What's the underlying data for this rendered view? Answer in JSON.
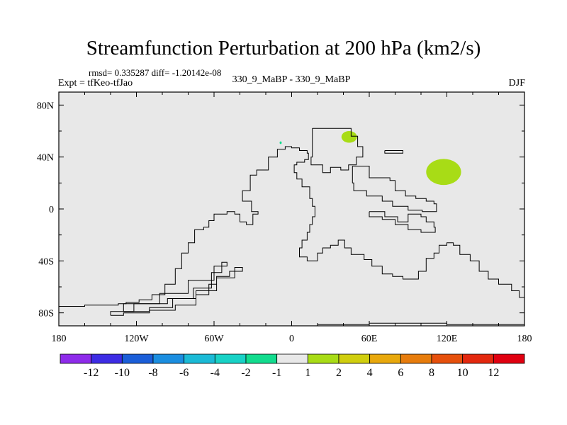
{
  "chart_data": {
    "type": "heatmap",
    "title": "Streamfunction Perturbation at 200 hPa (km2/s)",
    "stats_line": "rmsd= 0.335287 diff= -1.20142e-08",
    "left_label": "Expt = tfKeo-tfJao",
    "center_label": "330_9_MaBP - 330_9_MaBP",
    "right_label": "DJF",
    "xlim": [
      -180,
      180
    ],
    "ylim": [
      -90,
      90
    ],
    "x_ticks": [
      {
        "value": -180,
        "label": "180"
      },
      {
        "value": -120,
        "label": "120W"
      },
      {
        "value": -60,
        "label": "60W"
      },
      {
        "value": 0,
        "label": "0"
      },
      {
        "value": 60,
        "label": "60E"
      },
      {
        "value": 120,
        "label": "120E"
      },
      {
        "value": 180,
        "label": "180"
      }
    ],
    "y_ticks": [
      {
        "value": 80,
        "label": "80N"
      },
      {
        "value": 40,
        "label": "40N"
      },
      {
        "value": 0,
        "label": "0"
      },
      {
        "value": -40,
        "label": "40S"
      },
      {
        "value": -80,
        "label": "80S"
      }
    ],
    "background_color": "#e8e8e8",
    "colorbar": {
      "levels": [
        "-12",
        "-10",
        "-8",
        "-6",
        "-4",
        "-2",
        "-1",
        "1",
        "2",
        "4",
        "6",
        "8",
        "10",
        "12"
      ],
      "colors": [
        "#8e2bea",
        "#3d2ce4",
        "#1b5ed8",
        "#1b8ee0",
        "#1bbad6",
        "#18d2c6",
        "#12dc8e",
        "#e8e8e8",
        "#a8dc16",
        "#d0ce0e",
        "#e8a80c",
        "#e77c0c",
        "#e6500c",
        "#e3280e",
        "#e00010"
      ]
    },
    "features": [
      {
        "type": "patch",
        "lon": 44.5,
        "lat": 55.5,
        "rx": 6,
        "ry": 4.5,
        "color": "#a8dc16",
        "category": "1 to 2"
      },
      {
        "type": "patch",
        "lon": 117.5,
        "lat": 28.5,
        "rx": 13.5,
        "ry": 10,
        "color": "#a8dc16",
        "category": "1 to 2"
      },
      {
        "type": "patch",
        "lon": -8.5,
        "lat": 51,
        "rx": 0.8,
        "ry": 1,
        "color": "#12dc8e",
        "category": "-2 to -1"
      }
    ],
    "land_outlines": [
      [
        [
          -180,
          -75
        ],
        [
          -170,
          -75
        ],
        [
          -160,
          -74
        ],
        [
          -140,
          -74
        ],
        [
          -134,
          -73
        ],
        [
          -128,
          -72
        ],
        [
          -118,
          -70
        ],
        [
          -108,
          -66
        ],
        [
          -98,
          -58
        ],
        [
          -90,
          -46
        ],
        [
          -85,
          -34
        ],
        [
          -80,
          -26
        ],
        [
          -75,
          -16
        ],
        [
          -68,
          -14
        ],
        [
          -64,
          -9
        ],
        [
          -60,
          -4
        ],
        [
          -50,
          -2
        ],
        [
          -44,
          -4
        ],
        [
          -40,
          -10
        ],
        [
          -35,
          -12
        ],
        [
          -30,
          -4
        ],
        [
          -26,
          -2
        ],
        [
          -31,
          6
        ],
        [
          -38,
          14
        ],
        [
          -32,
          26
        ],
        [
          -27,
          30
        ],
        [
          -18,
          40
        ],
        [
          -11,
          46
        ],
        [
          -5,
          48
        ],
        [
          0,
          47
        ],
        [
          6,
          45
        ],
        [
          12,
          43
        ],
        [
          13,
          38
        ],
        [
          10,
          36
        ],
        [
          4,
          34
        ],
        [
          2,
          28
        ],
        [
          4,
          23
        ],
        [
          8,
          17
        ],
        [
          14,
          8
        ],
        [
          16,
          2
        ],
        [
          18,
          -6
        ],
        [
          16,
          -12
        ],
        [
          14,
          -18
        ],
        [
          12,
          -24
        ],
        [
          8,
          -30
        ],
        [
          6,
          -37
        ],
        [
          12,
          -40
        ],
        [
          20,
          -34
        ],
        [
          24,
          -30
        ],
        [
          30,
          -28
        ],
        [
          36,
          -24
        ],
        [
          41,
          -30
        ],
        [
          46,
          -35
        ],
        [
          56,
          -39
        ],
        [
          62,
          -44
        ],
        [
          70,
          -50
        ],
        [
          78,
          -52
        ],
        [
          86,
          -54
        ],
        [
          93,
          -54
        ],
        [
          98,
          -48
        ],
        [
          104,
          -38
        ],
        [
          110,
          -34
        ],
        [
          114,
          -28
        ],
        [
          120,
          -26
        ],
        [
          125,
          -28
        ],
        [
          130,
          -35
        ],
        [
          138,
          -40
        ],
        [
          145,
          -48
        ],
        [
          152,
          -54
        ],
        [
          160,
          -58
        ],
        [
          170,
          -63
        ],
        [
          176,
          -68
        ],
        [
          180,
          -71
        ]
      ],
      [
        [
          16,
          62
        ],
        [
          44,
          62
        ],
        [
          46,
          56
        ],
        [
          51,
          48
        ],
        [
          55,
          40
        ],
        [
          50,
          34
        ],
        [
          44,
          30
        ],
        [
          38,
          32
        ],
        [
          30,
          28
        ],
        [
          24,
          34
        ],
        [
          15,
          40
        ],
        [
          16,
          50
        ],
        [
          16,
          62
        ]
      ],
      [
        [
          60,
          -2
        ],
        [
          72,
          -6
        ],
        [
          82,
          -10
        ],
        [
          90,
          -4
        ],
        [
          100,
          -6
        ],
        [
          104,
          -10
        ],
        [
          110,
          -14
        ],
        [
          111,
          -18
        ],
        [
          100,
          -16
        ],
        [
          90,
          -12
        ],
        [
          80,
          -8
        ],
        [
          70,
          -6
        ],
        [
          60,
          -2
        ]
      ],
      [
        [
          47,
          33
        ],
        [
          60,
          24
        ],
        [
          76,
          22
        ],
        [
          80,
          14
        ],
        [
          88,
          10
        ],
        [
          96,
          8
        ],
        [
          104,
          6
        ],
        [
          110,
          4
        ],
        [
          112,
          -2
        ],
        [
          101,
          -1
        ],
        [
          90,
          2
        ],
        [
          78,
          6
        ],
        [
          70,
          10
        ],
        [
          58,
          14
        ],
        [
          48,
          20
        ],
        [
          47,
          33
        ]
      ],
      [
        [
          -140,
          -82
        ],
        [
          -130,
          -80
        ],
        [
          -110,
          -78
        ],
        [
          -90,
          -74
        ],
        [
          -74,
          -66
        ],
        [
          -64,
          -58
        ],
        [
          -58,
          -52
        ],
        [
          -48,
          -48
        ],
        [
          -38,
          -45
        ],
        [
          -44,
          -53
        ],
        [
          -58,
          -63
        ],
        [
          -74,
          -69
        ],
        [
          -96,
          -73
        ],
        [
          -122,
          -79
        ],
        [
          -140,
          -82
        ]
      ],
      [
        [
          -130,
          -79
        ],
        [
          -110,
          -76
        ],
        [
          -92,
          -69
        ],
        [
          -76,
          -61
        ],
        [
          -62,
          -49
        ],
        [
          -54,
          -41
        ],
        [
          -50,
          -44
        ],
        [
          -60,
          -55
        ],
        [
          -80,
          -65
        ],
        [
          -102,
          -73
        ],
        [
          -130,
          -79
        ]
      ],
      [
        [
          72,
          45
        ],
        [
          86,
          45
        ],
        [
          86,
          43
        ],
        [
          72,
          43
        ],
        [
          72,
          45
        ]
      ],
      [
        [
          -120,
          -90
        ],
        [
          -40,
          -90
        ],
        [
          20,
          -89
        ],
        [
          60,
          -88
        ],
        [
          120,
          -89
        ],
        [
          180,
          -90
        ]
      ]
    ]
  }
}
